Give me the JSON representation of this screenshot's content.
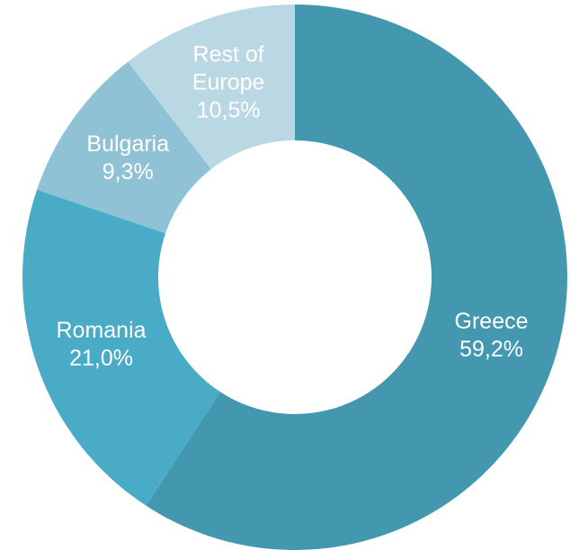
{
  "chart_data": {
    "type": "donut",
    "categories": [
      "Greece",
      "Romania",
      "Bulgaria",
      "Rest of Europe"
    ],
    "values": [
      59.2,
      21.0,
      9.3,
      10.5
    ],
    "value_labels": [
      "59,2%",
      "21,0%",
      "9,3%",
      "10,5%"
    ],
    "colors": [
      "#4398b0",
      "#4aabc6",
      "#8fc2d4",
      "#b9d8e3"
    ]
  }
}
